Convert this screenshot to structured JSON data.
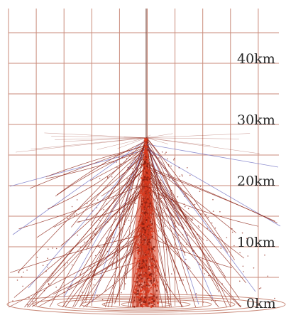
{
  "diagram": {
    "altitude_labels": [
      {
        "text": "40km",
        "altitude_km": 40
      },
      {
        "text": "30km",
        "altitude_km": 30
      },
      {
        "text": "20km",
        "altitude_km": 20
      },
      {
        "text": "10km",
        "altitude_km": 10
      },
      {
        "text": "0km",
        "altitude_km": 0
      }
    ],
    "max_altitude_km": 45,
    "shower_origin_altitude_km": 27,
    "colors": {
      "grid": "#c98a7a",
      "grid_center": "#8a5a50",
      "hadronic_tracks": "#8a1e10",
      "shower_core": "#d93a1e",
      "muon_tracks": "#6a6ac0",
      "ground_disc": "#c98a7a",
      "label": "#2a2a2a"
    }
  }
}
